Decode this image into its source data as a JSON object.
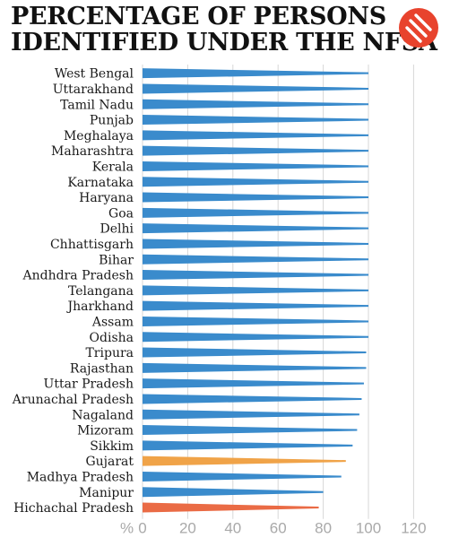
{
  "header": {
    "title_line1": "PERCENTAGE OF PERSONS",
    "title_line2": "IDENTIFIED UNDER THE NFSA",
    "logo_icon": "indian-express-logo-icon",
    "logo_color": "#e8432d"
  },
  "colors": {
    "default": "#3a8bcc",
    "gujarat": "#f0a348",
    "himachal": "#ea6b45",
    "gridline": "#d7d7d7"
  },
  "chart_data": {
    "type": "bar",
    "orientation": "horizontal",
    "title": "PERCENTAGE OF PERSONS IDENTIFIED UNDER THE NFSA",
    "xlabel": "%",
    "xlim": [
      0,
      120
    ],
    "xticks": [
      0,
      20,
      40,
      60,
      80,
      100,
      120
    ],
    "grid": true,
    "categories": [
      "West Bengal",
      "Uttarakhand",
      "Tamil Nadu",
      "Punjab",
      "Meghalaya",
      "Maharashtra",
      "Kerala",
      "Karnataka",
      "Haryana",
      "Goa",
      "Delhi",
      "Chhattisgarh",
      "Bihar",
      "Andhdra Pradesh",
      "Telangana",
      "Jharkhand",
      "Assam",
      "Odisha",
      "Tripura",
      "Rajasthan",
      "Uttar Pradesh",
      "Arunachal Pradesh",
      "Nagaland",
      "Mizoram",
      "Sikkim",
      "Gujarat",
      "Madhya Pradesh",
      "Manipur",
      "Hichachal Pradesh"
    ],
    "values": [
      100,
      100,
      100,
      100,
      100,
      100,
      100,
      100,
      100,
      100,
      100,
      100,
      100,
      100,
      100,
      100,
      100,
      100,
      99,
      99,
      98,
      97,
      96,
      95,
      93,
      90,
      88,
      80,
      78
    ],
    "highlights": {
      "Gujarat": "#f0a348",
      "Hichachal Pradesh": "#ea6b45"
    }
  }
}
